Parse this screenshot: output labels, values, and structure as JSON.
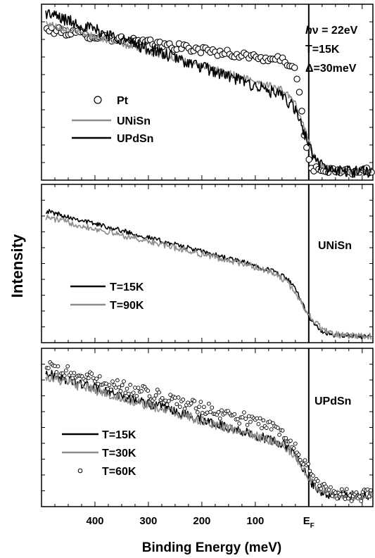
{
  "figure": {
    "ylabel": "Intensity",
    "xlabel": "Binding Energy (meV)",
    "ef_label": "E",
    "ef_subscript": "F",
    "x_ticks": [
      {
        "value": 400,
        "label": "400"
      },
      {
        "value": 300,
        "label": "300"
      },
      {
        "value": 200,
        "label": "200"
      },
      {
        "value": 100,
        "label": "100"
      }
    ]
  },
  "colors": {
    "black": "#000000",
    "gray": "#8c8c8c",
    "marker_fill": "#ffffff"
  },
  "chart_data": [
    {
      "type": "line",
      "panel": "top",
      "xlim": [
        -120,
        500
      ],
      "x_reversed": true,
      "fermi_level_x": 0,
      "annotation": {
        "h": "h",
        "nu": "ν",
        "rest": " = 22eV",
        "line2": "T=15K",
        "line3": "Δ=30meV"
      },
      "series": [
        {
          "name": "Pt",
          "style": "open-circle",
          "edge_mev": 12,
          "width_mev": 6,
          "low": 0.05,
          "high_start": 0.86,
          "high_end": 0.66,
          "noise": 0.02
        },
        {
          "name": "UNiSn",
          "style": "gray-line",
          "edge_mev": 5,
          "width_mev": 12,
          "low": 0.05,
          "high_start": 0.9,
          "high_end": 0.48,
          "noise": 0.02
        },
        {
          "name": "UPdSn",
          "style": "black-line",
          "edge_mev": 5,
          "width_mev": 12,
          "low": 0.05,
          "high_start": 0.96,
          "high_end": 0.43,
          "noise": 0.035
        }
      ]
    },
    {
      "type": "line",
      "panel": "middle",
      "xlim": [
        -120,
        500
      ],
      "x_reversed": true,
      "fermi_level_x": 0,
      "label": "UNiSn",
      "series": [
        {
          "name": "T=15K",
          "style": "black-line",
          "edge_mev": 8,
          "width_mev": 14,
          "low": 0.04,
          "high_start": 0.84,
          "high_end": 0.4,
          "noise": 0.015
        },
        {
          "name": "T=90K",
          "style": "gray-line",
          "edge_mev": 8,
          "width_mev": 18,
          "low": 0.04,
          "high_start": 0.8,
          "high_end": 0.4,
          "noise": 0.02
        }
      ]
    },
    {
      "type": "line",
      "panel": "bottom",
      "xlim": [
        -120,
        500
      ],
      "x_reversed": true,
      "fermi_level_x": 0,
      "label": "UPdSn",
      "series": [
        {
          "name": "T=15K",
          "style": "black-line",
          "edge_mev": 5,
          "width_mev": 12,
          "low": 0.07,
          "high_start": 0.85,
          "high_end": 0.35,
          "noise": 0.03
        },
        {
          "name": "T=30K",
          "style": "gray-line",
          "edge_mev": 5,
          "width_mev": 14,
          "low": 0.07,
          "high_start": 0.83,
          "high_end": 0.35,
          "noise": 0.03
        },
        {
          "name": "T=60K",
          "style": "small-open-circle",
          "edge_mev": 5,
          "width_mev": 16,
          "low": 0.07,
          "high_start": 0.89,
          "high_end": 0.45,
          "noise": 0.04
        }
      ]
    }
  ]
}
